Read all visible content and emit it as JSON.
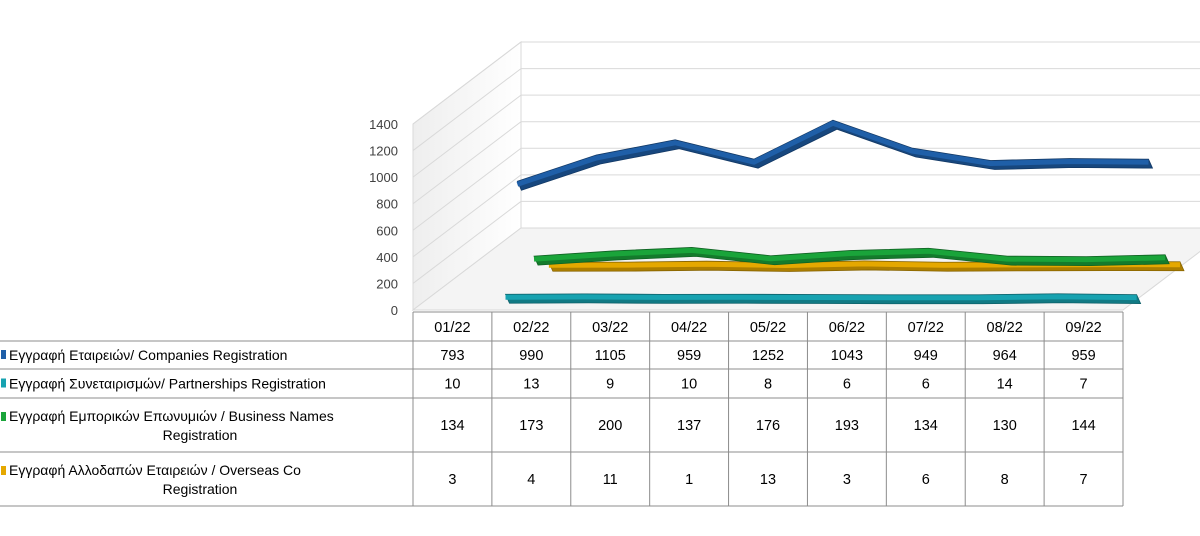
{
  "chart_data": {
    "type": "line",
    "title": "",
    "xlabel": "",
    "ylabel": "",
    "ylim": [
      0,
      1400
    ],
    "yticks": [
      0,
      200,
      400,
      600,
      800,
      1000,
      1200,
      1400
    ],
    "categories": [
      "01/22",
      "02/22",
      "03/22",
      "04/22",
      "05/22",
      "06/22",
      "07/22",
      "08/22",
      "09/22"
    ],
    "series": [
      {
        "name": "Εγγραφή  Εταιρειών/ Companies Registration",
        "label_lines": [
          "Εγγραφή  Εταιρειών/ Companies Registration"
        ],
        "color": "#1f5fa8",
        "values": [
          793,
          990,
          1105,
          959,
          1252,
          1043,
          949,
          964,
          959
        ]
      },
      {
        "name": "Εγγραφή  Συνεταιρισμών/ Partnerships Registration",
        "label_lines": [
          "Εγγραφή  Συνεταιρισμών/ Partnerships Registration"
        ],
        "color": "#17a2b0",
        "values": [
          10,
          13,
          9,
          10,
          8,
          6,
          6,
          14,
          7
        ]
      },
      {
        "name": "Εγγραφή  Εμπορικών  Επωνυμιών  / Business Names Registration",
        "label_lines": [
          "Εγγραφή  Εμπορικών  Επωνυμιών  / Business Names",
          "Registration"
        ],
        "color": "#1aa43a",
        "values": [
          134,
          173,
          200,
          137,
          176,
          193,
          134,
          130,
          144
        ]
      },
      {
        "name": "Εγγραφή  Αλλοδαπών  Εταιρειών  / Overseas Co Registration",
        "label_lines": [
          "Εγγραφή  Αλλοδαπών  Εταιρειών  / Overseas Co",
          "Registration"
        ],
        "color": "#e5a800",
        "values": [
          3,
          4,
          11,
          1,
          13,
          3,
          6,
          8,
          7
        ]
      }
    ],
    "legend": "data-table"
  }
}
